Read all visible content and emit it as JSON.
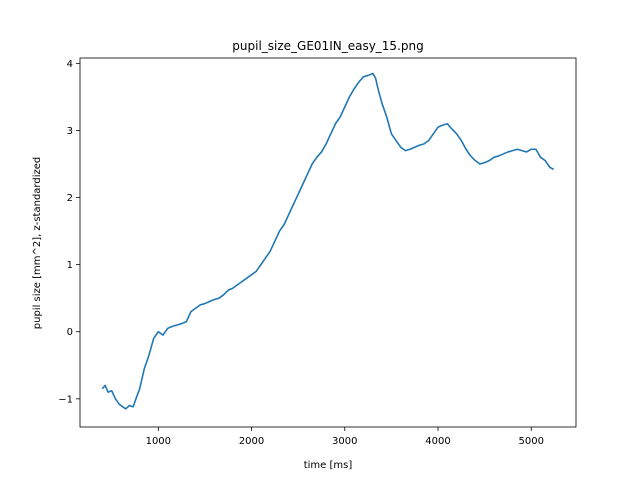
{
  "chart_data": {
    "type": "line",
    "title": "pupil_size_GE01IN_easy_15.png",
    "xlabel": "time [ms]",
    "ylabel": "pupil size [mm^2], z-standardized",
    "xlim": [
      160,
      5480
    ],
    "ylim": [
      -1.42,
      4.08
    ],
    "xticks": [
      1000,
      2000,
      3000,
      4000,
      5000
    ],
    "yticks": [
      -1,
      0,
      1,
      2,
      3,
      4
    ],
    "xtick_labels": [
      "1000",
      "2000",
      "3000",
      "4000",
      "5000"
    ],
    "ytick_labels": [
      "−1",
      "0",
      "1",
      "2",
      "3",
      "4"
    ],
    "grid": false,
    "series_color": "#1f77b4",
    "series": [
      {
        "x": [
          400,
          430,
          460,
          500,
          540,
          580,
          620,
          650,
          690,
          730,
          760,
          800,
          850,
          900,
          950,
          1000,
          1050,
          1100,
          1150,
          1200,
          1250,
          1300,
          1350,
          1400,
          1450,
          1500,
          1550,
          1600,
          1650,
          1700,
          1750,
          1800,
          1850,
          1900,
          1950,
          2000,
          2050,
          2100,
          2150,
          2200,
          2250,
          2300,
          2350,
          2400,
          2450,
          2500,
          2550,
          2600,
          2650,
          2700,
          2750,
          2800,
          2850,
          2900,
          2950,
          3000,
          3050,
          3100,
          3150,
          3200,
          3250,
          3300,
          3330,
          3360,
          3400,
          3450,
          3500,
          3550,
          3600,
          3650,
          3700,
          3750,
          3800,
          3850,
          3900,
          3950,
          4000,
          4050,
          4100,
          4150,
          4200,
          4250,
          4300,
          4350,
          4400,
          4450,
          4500,
          4550,
          4600,
          4650,
          4700,
          4750,
          4800,
          4850,
          4900,
          4950,
          5000,
          5050,
          5100,
          5150,
          5200,
          5240
        ],
        "y": [
          -0.85,
          -0.8,
          -0.9,
          -0.88,
          -1.0,
          -1.08,
          -1.12,
          -1.15,
          -1.1,
          -1.12,
          -1.0,
          -0.85,
          -0.55,
          -0.35,
          -0.1,
          0.0,
          -0.05,
          0.05,
          0.08,
          0.1,
          0.12,
          0.15,
          0.3,
          0.35,
          0.4,
          0.42,
          0.45,
          0.48,
          0.5,
          0.55,
          0.62,
          0.65,
          0.7,
          0.75,
          0.8,
          0.85,
          0.9,
          1.0,
          1.1,
          1.2,
          1.35,
          1.5,
          1.6,
          1.75,
          1.9,
          2.05,
          2.2,
          2.35,
          2.5,
          2.6,
          2.68,
          2.8,
          2.95,
          3.1,
          3.2,
          3.35,
          3.5,
          3.62,
          3.72,
          3.8,
          3.82,
          3.85,
          3.78,
          3.6,
          3.4,
          3.2,
          2.95,
          2.85,
          2.75,
          2.7,
          2.72,
          2.75,
          2.78,
          2.8,
          2.85,
          2.95,
          3.05,
          3.08,
          3.1,
          3.02,
          2.95,
          2.85,
          2.72,
          2.62,
          2.55,
          2.5,
          2.52,
          2.55,
          2.6,
          2.62,
          2.65,
          2.68,
          2.7,
          2.72,
          2.7,
          2.68,
          2.72,
          2.72,
          2.6,
          2.55,
          2.45,
          2.42
        ]
      }
    ]
  }
}
